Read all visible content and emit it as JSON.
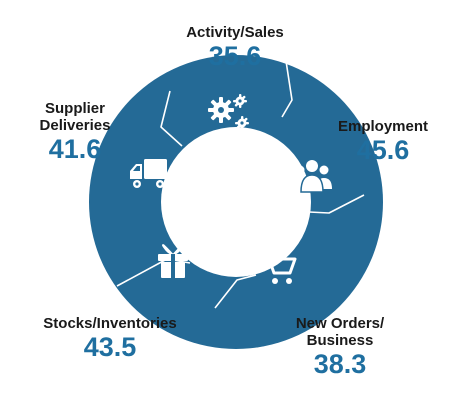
{
  "colors": {
    "ring": "#246a96",
    "divider": "#ffffff",
    "value": "#1f6fa0",
    "text": "#1a1a1a"
  },
  "segments": [
    {
      "name": "Activity/Sales",
      "value": "35.6",
      "icon": "gears-icon"
    },
    {
      "name": "Employment",
      "value": "45.6",
      "icon": "people-icon"
    },
    {
      "name": "New Orders/ Business",
      "value": "38.3",
      "icon": "shopping-cart-icon"
    },
    {
      "name": "Stocks/Inventories",
      "value": "43.5",
      "icon": "gift-box-icon"
    },
    {
      "name": "Supplier Deliveries",
      "value": "41.6",
      "icon": "delivery-truck-icon"
    }
  ]
}
